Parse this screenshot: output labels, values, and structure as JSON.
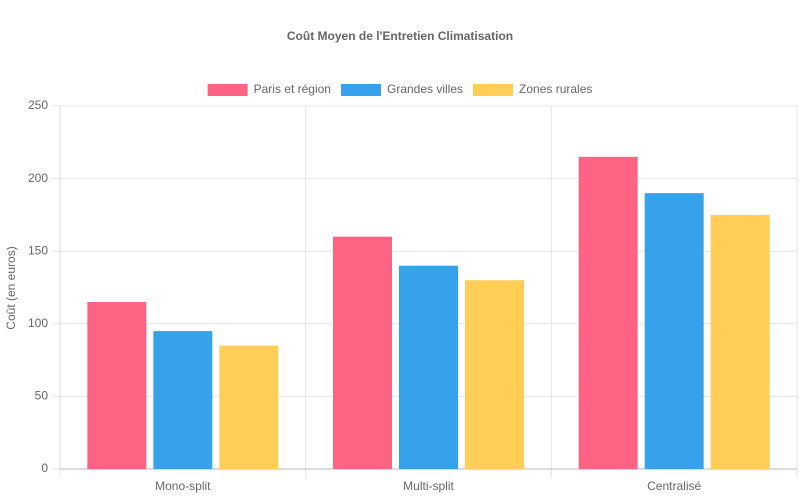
{
  "chart_data": {
    "type": "bar",
    "title": "Coût Moyen de l'Entretien Climatisation",
    "y_label": "Coût (en euros)",
    "categories": [
      "Mono-split",
      "Multi-split",
      "Centralisé"
    ],
    "series": [
      {
        "name": "Paris et région",
        "color": "#ff6384",
        "values": [
          115,
          160,
          215
        ]
      },
      {
        "name": "Grandes villes",
        "color": "#36a2eb",
        "values": [
          95,
          140,
          190
        ]
      },
      {
        "name": "Zones rurales",
        "color": "#ffce56",
        "values": [
          85,
          130,
          175
        ]
      }
    ],
    "ylim": [
      0,
      250
    ],
    "yticks": [
      0,
      50,
      100,
      150,
      200,
      250
    ],
    "grid": true,
    "legend": "top"
  }
}
